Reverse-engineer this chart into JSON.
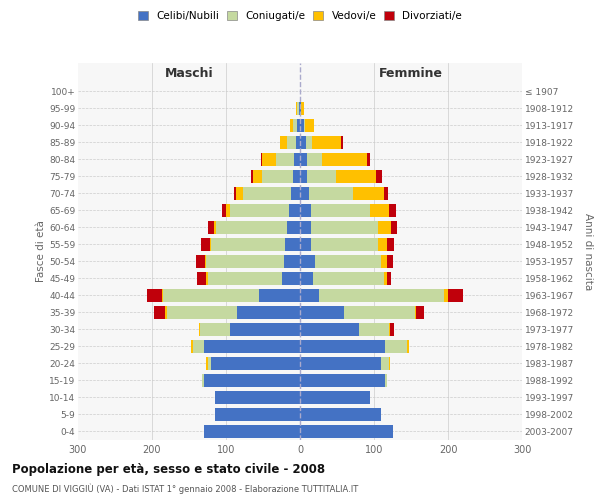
{
  "age_groups": [
    "0-4",
    "5-9",
    "10-14",
    "15-19",
    "20-24",
    "25-29",
    "30-34",
    "35-39",
    "40-44",
    "45-49",
    "50-54",
    "55-59",
    "60-64",
    "65-69",
    "70-74",
    "75-79",
    "80-84",
    "85-89",
    "90-94",
    "95-99",
    "100+"
  ],
  "birth_years": [
    "2003-2007",
    "1998-2002",
    "1993-1997",
    "1988-1992",
    "1983-1987",
    "1978-1982",
    "1973-1977",
    "1968-1972",
    "1963-1967",
    "1958-1962",
    "1953-1957",
    "1948-1952",
    "1943-1947",
    "1938-1942",
    "1933-1937",
    "1928-1932",
    "1923-1927",
    "1918-1922",
    "1913-1917",
    "1908-1912",
    "≤ 1907"
  ],
  "male_celibe": [
    130,
    115,
    115,
    130,
    120,
    130,
    95,
    85,
    55,
    25,
    22,
    20,
    18,
    15,
    12,
    10,
    8,
    5,
    4,
    2,
    0
  ],
  "male_coniug": [
    0,
    0,
    0,
    2,
    5,
    15,
    40,
    95,
    130,
    100,
    105,
    100,
    95,
    80,
    65,
    42,
    25,
    12,
    5,
    2,
    0
  ],
  "male_vedovo": [
    0,
    0,
    0,
    0,
    2,
    2,
    2,
    2,
    2,
    2,
    2,
    2,
    3,
    5,
    10,
    12,
    18,
    10,
    5,
    2,
    0
  ],
  "male_divorz": [
    0,
    0,
    0,
    0,
    0,
    0,
    0,
    15,
    20,
    12,
    12,
    12,
    8,
    5,
    2,
    2,
    2,
    0,
    0,
    0,
    0
  ],
  "female_celibe": [
    125,
    110,
    95,
    115,
    110,
    115,
    80,
    60,
    25,
    18,
    20,
    15,
    15,
    15,
    12,
    10,
    10,
    8,
    5,
    2,
    0
  ],
  "female_coniug": [
    0,
    0,
    0,
    2,
    10,
    30,
    40,
    95,
    170,
    95,
    90,
    90,
    90,
    80,
    60,
    38,
    20,
    8,
    2,
    0,
    0
  ],
  "female_vedova": [
    0,
    0,
    0,
    0,
    2,
    2,
    2,
    2,
    5,
    5,
    8,
    12,
    18,
    25,
    42,
    55,
    60,
    40,
    12,
    4,
    0
  ],
  "female_divorz": [
    0,
    0,
    0,
    0,
    0,
    0,
    5,
    10,
    20,
    5,
    8,
    10,
    8,
    10,
    5,
    8,
    5,
    2,
    0,
    0,
    0
  ],
  "color_celibe": "#4472c4",
  "color_coniug": "#c5d9a0",
  "color_vedovo": "#ffc000",
  "color_divorz": "#c0000b",
  "title": "Popolazione per età, sesso e stato civile - 2008",
  "subtitle": "COMUNE DI VIGGIÙ (VA) - Dati ISTAT 1° gennaio 2008 - Elaborazione TUTTITALIA.IT",
  "xlabel_left": "Maschi",
  "xlabel_right": "Femmine",
  "ylabel_left": "Fasce di età",
  "ylabel_right": "Anni di nascita",
  "xlim": 300,
  "bar_height": 0.75,
  "legend_labels": [
    "Celibi/Nubili",
    "Coniugati/e",
    "Vedovi/e",
    "Divorziati/e"
  ],
  "bg_color": "#ffffff",
  "plot_bg": "#f7f7f7",
  "grid_color": "#cccccc",
  "axis_label_color": "#666666"
}
